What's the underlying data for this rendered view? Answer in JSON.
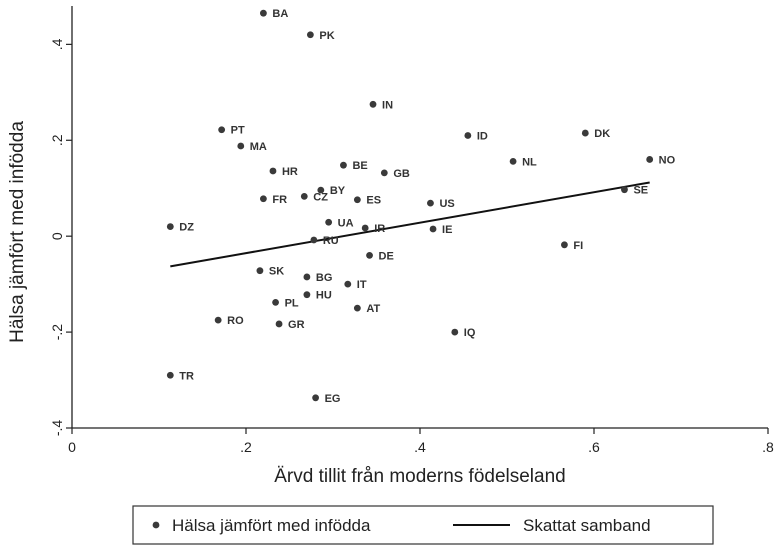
{
  "chart_data": {
    "type": "scatter",
    "title": "",
    "xlabel": "Ärvd tillit från moderns födelseland",
    "ylabel": "Hälsa jämfört med infödda",
    "xlim": [
      0,
      0.8
    ],
    "ylim": [
      -0.4,
      0.48
    ],
    "x_ticks": [
      {
        "value": 0,
        "label": "0"
      },
      {
        "value": 0.2,
        "label": ".2"
      },
      {
        "value": 0.4,
        "label": ".4"
      },
      {
        "value": 0.6,
        "label": ".6"
      },
      {
        "value": 0.8,
        "label": ".8"
      }
    ],
    "y_ticks": [
      {
        "value": -0.4,
        "label": "-.4"
      },
      {
        "value": -0.2,
        "label": "-.2"
      },
      {
        "value": 0,
        "label": "0"
      },
      {
        "value": 0.2,
        "label": ".2"
      },
      {
        "value": 0.4,
        "label": ".4"
      }
    ],
    "grid": false,
    "legend_position": "bottom",
    "series": [
      {
        "name": "Hälsa jämfört med infödda",
        "kind": "scatter",
        "color": "#3a3a3a",
        "points": [
          {
            "label": "BA",
            "x": 0.22,
            "y": 0.465
          },
          {
            "label": "PK",
            "x": 0.274,
            "y": 0.42
          },
          {
            "label": "IN",
            "x": 0.346,
            "y": 0.275
          },
          {
            "label": "PT",
            "x": 0.172,
            "y": 0.222
          },
          {
            "label": "ID",
            "x": 0.455,
            "y": 0.21
          },
          {
            "label": "DK",
            "x": 0.59,
            "y": 0.215
          },
          {
            "label": "MA",
            "x": 0.194,
            "y": 0.188
          },
          {
            "label": "NO",
            "x": 0.664,
            "y": 0.16
          },
          {
            "label": "NL",
            "x": 0.507,
            "y": 0.156
          },
          {
            "label": "BE",
            "x": 0.312,
            "y": 0.148
          },
          {
            "label": "HR",
            "x": 0.231,
            "y": 0.136
          },
          {
            "label": "GB",
            "x": 0.359,
            "y": 0.132
          },
          {
            "label": "SE",
            "x": 0.635,
            "y": 0.097
          },
          {
            "label": "BY",
            "x": 0.286,
            "y": 0.096
          },
          {
            "label": "CZ",
            "x": 0.267,
            "y": 0.083
          },
          {
            "label": "FR",
            "x": 0.22,
            "y": 0.078
          },
          {
            "label": "ES",
            "x": 0.328,
            "y": 0.076
          },
          {
            "label": "US",
            "x": 0.412,
            "y": 0.069
          },
          {
            "label": "UA",
            "x": 0.295,
            "y": 0.029
          },
          {
            "label": "DZ",
            "x": 0.113,
            "y": 0.02
          },
          {
            "label": "IR",
            "x": 0.337,
            "y": 0.017
          },
          {
            "label": "IE",
            "x": 0.415,
            "y": 0.015
          },
          {
            "label": "RU",
            "x": 0.278,
            "y": -0.008
          },
          {
            "label": "FI",
            "x": 0.566,
            "y": -0.018
          },
          {
            "label": "DE",
            "x": 0.342,
            "y": -0.04
          },
          {
            "label": "SK",
            "x": 0.216,
            "y": -0.072
          },
          {
            "label": "BG",
            "x": 0.27,
            "y": -0.085
          },
          {
            "label": "IT",
            "x": 0.317,
            "y": -0.1
          },
          {
            "label": "HU",
            "x": 0.27,
            "y": -0.122
          },
          {
            "label": "PL",
            "x": 0.234,
            "y": -0.138
          },
          {
            "label": "AT",
            "x": 0.328,
            "y": -0.15
          },
          {
            "label": "RO",
            "x": 0.168,
            "y": -0.175
          },
          {
            "label": "GR",
            "x": 0.238,
            "y": -0.183
          },
          {
            "label": "IQ",
            "x": 0.44,
            "y": -0.2
          },
          {
            "label": "TR",
            "x": 0.113,
            "y": -0.29
          },
          {
            "label": "EG",
            "x": 0.28,
            "y": -0.337
          }
        ]
      },
      {
        "name": "Skattat samband",
        "kind": "line",
        "color": "#111111",
        "points": [
          {
            "x": 0.113,
            "y": -0.063
          },
          {
            "x": 0.664,
            "y": 0.112
          }
        ]
      }
    ]
  }
}
